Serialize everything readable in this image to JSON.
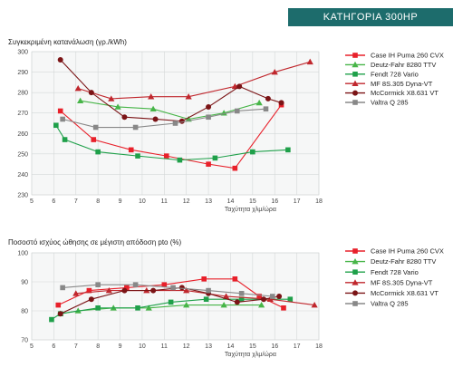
{
  "header": {
    "title": "ΚΑΤΗΓΟΡΙΑ 300HP",
    "color": "#1d6c6c"
  },
  "chart_data": [
    {
      "type": "line",
      "title": "Συγκεκριμένη κατανάλωση (γρ./kWh)",
      "xlabel": "Ταχύτητα χλμ/ώρα",
      "ylabel": "",
      "xlim": [
        5,
        18
      ],
      "ylim": [
        230,
        300
      ],
      "xticks": [
        5,
        6,
        7,
        8,
        9,
        10,
        11,
        12,
        13,
        14,
        15,
        16,
        17,
        18
      ],
      "yticks": [
        230,
        240,
        250,
        260,
        270,
        280,
        290,
        300
      ],
      "grid": true,
      "legend_position": "right",
      "series": [
        {
          "name": "Case IH Puma 260 CVX",
          "color": "#e8202a",
          "marker": "square",
          "x": [
            6.3,
            7.8,
            9.5,
            11.1,
            13.0,
            14.2,
            16.3
          ],
          "y": [
            271,
            257,
            252,
            249,
            245,
            243,
            274
          ]
        },
        {
          "name": "Deutz-Fahr 8280 TTV",
          "color": "#47b548",
          "marker": "triangle",
          "x": [
            7.2,
            8.9,
            10.5,
            12.1,
            13.7,
            15.3
          ],
          "y": [
            276,
            273,
            272,
            267,
            270,
            275
          ]
        },
        {
          "name": "Fendt 728 Vario",
          "color": "#1fa04a",
          "marker": "square",
          "x": [
            6.1,
            6.5,
            8.0,
            9.8,
            11.7,
            13.3,
            15.0,
            16.6
          ],
          "y": [
            264,
            257,
            251,
            249,
            247,
            248,
            251,
            252
          ]
        },
        {
          "name": "MF 8S.305 Dyna-VT",
          "color": "#c0272d",
          "marker": "triangle",
          "x": [
            7.1,
            8.6,
            10.4,
            12.1,
            14.2,
            16.0,
            17.6
          ],
          "y": [
            282,
            277,
            278,
            278,
            283,
            290,
            295
          ]
        },
        {
          "name": "McCormick X8.631 VT",
          "color": "#7b1416",
          "marker": "circle",
          "x": [
            6.3,
            7.7,
            9.2,
            10.6,
            11.8,
            13.0,
            14.4,
            15.7,
            16.3
          ],
          "y": [
            296,
            280,
            268,
            267,
            266,
            273,
            283,
            277,
            275
          ]
        },
        {
          "name": "Valtra Q 285",
          "color": "#888888",
          "marker": "square",
          "x": [
            6.4,
            7.9,
            9.7,
            11.5,
            13.0,
            14.3,
            15.6
          ],
          "y": [
            267,
            263,
            263,
            265,
            268,
            271,
            272
          ]
        }
      ]
    },
    {
      "type": "line",
      "title": "Ποσοστό ισχύος ώθησης σε μέγιστη απόδοση pto  (%)",
      "xlabel": "Ταχύτητα χλμ/ώρα",
      "ylabel": "",
      "xlim": [
        5,
        18
      ],
      "ylim": [
        70,
        100
      ],
      "xticks": [
        5,
        6,
        7,
        8,
        9,
        10,
        11,
        12,
        13,
        14,
        15,
        16,
        17,
        18
      ],
      "yticks": [
        70,
        80,
        90,
        100
      ],
      "grid": true,
      "legend_position": "right",
      "series": [
        {
          "name": "Case IH Puma 260 CVX",
          "color": "#e8202a",
          "marker": "square",
          "x": [
            6.2,
            7.6,
            9.3,
            11.0,
            12.8,
            14.2,
            15.3,
            16.4
          ],
          "y": [
            82,
            87,
            88,
            89,
            91,
            91,
            85,
            81
          ]
        },
        {
          "name": "Deutz-Fahr 8280 TTV",
          "color": "#47b548",
          "marker": "triangle",
          "x": [
            6.3,
            7.1,
            8.7,
            10.3,
            12.0,
            13.7,
            15.4
          ],
          "y": [
            79,
            80,
            81,
            81,
            82,
            82,
            82
          ]
        },
        {
          "name": "Fendt 728 Vario",
          "color": "#1fa04a",
          "marker": "square",
          "x": [
            5.9,
            6.3,
            8.0,
            9.8,
            11.3,
            12.9,
            14.5,
            16.7
          ],
          "y": [
            77,
            79,
            81,
            81,
            83,
            84,
            84,
            84
          ]
        },
        {
          "name": "MF 8S.305 Dyna-VT",
          "color": "#c0272d",
          "marker": "triangle",
          "x": [
            7.0,
            8.5,
            10.2,
            12.0,
            13.8,
            15.8,
            17.8
          ],
          "y": [
            86,
            87,
            87,
            87,
            85,
            84,
            82
          ]
        },
        {
          "name": "McCormick X8.631 VT",
          "color": "#7b1416",
          "marker": "circle",
          "x": [
            6.3,
            7.7,
            9.2,
            10.5,
            11.8,
            13.0,
            14.3,
            15.5,
            16.2
          ],
          "y": [
            79,
            84,
            87,
            87,
            88,
            86,
            83,
            84,
            85
          ]
        },
        {
          "name": "Valtra Q 285",
          "color": "#888888",
          "marker": "square",
          "x": [
            6.4,
            8.0,
            9.7,
            11.4,
            13.0,
            14.5,
            15.9
          ],
          "y": [
            88,
            89,
            89,
            88,
            87,
            86,
            85
          ]
        }
      ]
    }
  ]
}
